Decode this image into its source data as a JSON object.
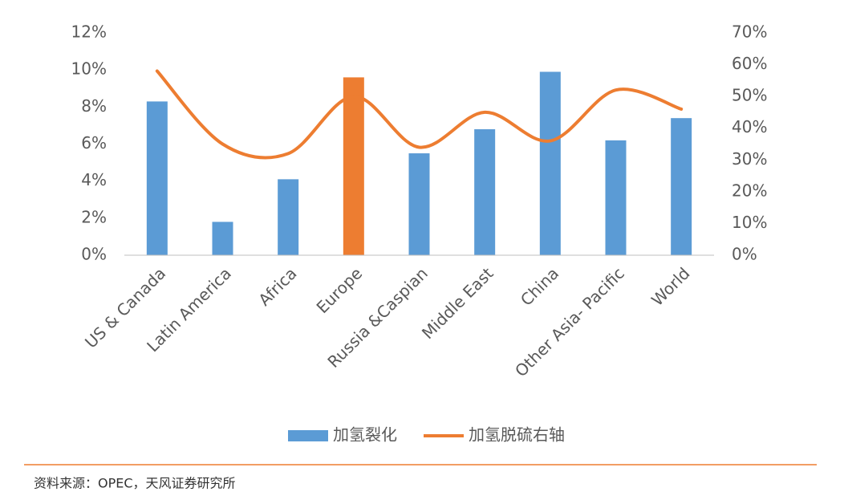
{
  "chart_data": {
    "type": "bar_line",
    "categories": [
      "US & Canada",
      "Latin America",
      "Africa",
      "Europe",
      "Russia &Caspian",
      "Middle East",
      "China",
      "Other Asia- Pacific",
      "World"
    ],
    "series": [
      {
        "name": "加氢裂化",
        "type": "bar",
        "color": "#5b9bd5",
        "colors": [
          "#5b9bd5",
          "#5b9bd5",
          "#5b9bd5",
          "#ed7d31",
          "#5b9bd5",
          "#5b9bd5",
          "#5b9bd5",
          "#5b9bd5",
          "#5b9bd5"
        ],
        "values": [
          8.3,
          1.8,
          4.1,
          9.6,
          5.5,
          6.8,
          9.9,
          6.2,
          7.4
        ]
      },
      {
        "name": "加氢脱硫右轴",
        "type": "line",
        "axis": "y2",
        "color": "#ed7d31",
        "smooth": true,
        "values": [
          58,
          35,
          32,
          50,
          34,
          45,
          36,
          52,
          46
        ]
      }
    ],
    "ylim": [
      0,
      12
    ],
    "yticks": [
      {
        "value": 0,
        "label": "0%"
      },
      {
        "value": 2,
        "label": "2%"
      },
      {
        "value": 4,
        "label": "4%"
      },
      {
        "value": 6,
        "label": "6%"
      },
      {
        "value": 8,
        "label": "8%"
      },
      {
        "value": 10,
        "label": "10%"
      },
      {
        "value": 12,
        "label": "12%"
      }
    ],
    "y2lim": [
      0,
      70
    ],
    "y2ticks": [
      {
        "value": 0,
        "label": "0%"
      },
      {
        "value": 10,
        "label": "10%"
      },
      {
        "value": 20,
        "label": "20%"
      },
      {
        "value": 30,
        "label": "30%"
      },
      {
        "value": 40,
        "label": "40%"
      },
      {
        "value": 50,
        "label": "50%"
      },
      {
        "value": 60,
        "label": "60%"
      },
      {
        "value": 70,
        "label": "70%"
      }
    ],
    "grid": false,
    "legend": "bottom"
  },
  "source": "资料来源：OPEC，天风证券研究所"
}
